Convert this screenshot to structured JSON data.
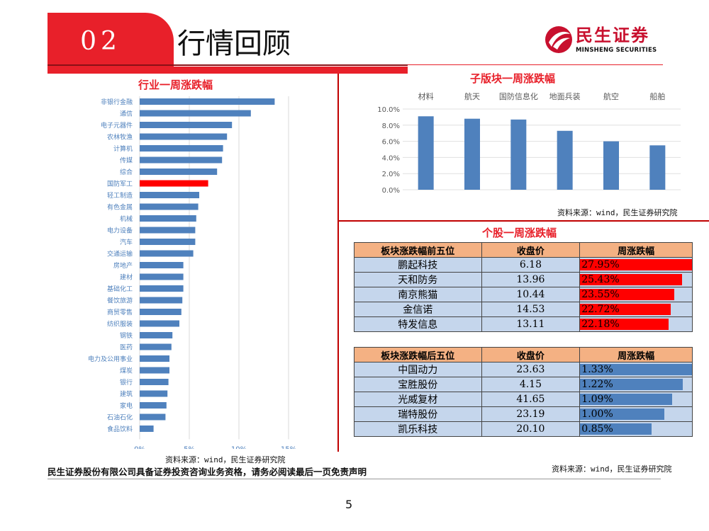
{
  "header": {
    "section_number": "02",
    "title": "行情回顾"
  },
  "logo": {
    "name_cn": "民生证券",
    "name_en": "MINSHENG SECURITIES"
  },
  "industry_chart": {
    "title": "行业一周涨跌幅",
    "source": "资料来源：wind，民生证券研究院"
  },
  "sub_sector_chart": {
    "title": "子版块一周涨跌幅",
    "source": "资料来源：wind，民生证券研究院"
  },
  "stock_section": {
    "title": "个股一周涨跌幅",
    "source": "资料来源：wind，民生证券研究院",
    "top5": {
      "headers": [
        "板块涨跌幅前五位",
        "收盘价",
        "周涨跌幅"
      ],
      "rows": [
        {
          "name": "鹏起科技",
          "close": "6.18",
          "change": "27.95%",
          "value": 27.95
        },
        {
          "name": "天和防务",
          "close": "13.96",
          "change": "25.43%",
          "value": 25.43
        },
        {
          "name": "南京熊猫",
          "close": "10.44",
          "change": "23.55%",
          "value": 23.55
        },
        {
          "name": "金信诺",
          "close": "14.53",
          "change": "22.72%",
          "value": 22.72
        },
        {
          "name": "特发信息",
          "close": "13.11",
          "change": "22.18%",
          "value": 22.18
        }
      ],
      "bar_color": "#ff0000"
    },
    "bottom5": {
      "headers": [
        "板块涨跌幅后五位",
        "收盘价",
        "周涨跌幅"
      ],
      "rows": [
        {
          "name": "中国动力",
          "close": "23.63",
          "change": "1.33%",
          "value": 1.33
        },
        {
          "name": "宝胜股份",
          "close": "4.15",
          "change": "1.22%",
          "value": 1.22
        },
        {
          "name": "光威复材",
          "close": "41.65",
          "change": "1.09%",
          "value": 1.09
        },
        {
          "name": "瑞特股份",
          "close": "23.19",
          "change": "1.00%",
          "value": 1.0
        },
        {
          "name": "凯乐科技",
          "close": "20.10",
          "change": "0.85%",
          "value": 0.85
        }
      ],
      "bar_color": "#4f81bd"
    }
  },
  "footer": {
    "disclaimer": "民生证券股份有限公司具备证券投资咨询业务资格，请务必阅读最后一页免责声明",
    "page_number": "5"
  },
  "colors": {
    "accent_red": "#e8202a",
    "bar_blue": "#4f81bd",
    "highlight_red": "#ff0000",
    "header_orange": "#f4b183",
    "cell_blue": "#c5d6ec"
  },
  "chart_data": [
    {
      "type": "bar",
      "orientation": "horizontal",
      "title": "行业一周涨跌幅",
      "categories": [
        "非银行金融",
        "通信",
        "电子元器件",
        "农林牧渔",
        "计算机",
        "传媒",
        "综合",
        "国防军工",
        "轻工制造",
        "有色金属",
        "机械",
        "电力设备",
        "汽车",
        "交通运输",
        "房地产",
        "建材",
        "基础化工",
        "餐饮旅游",
        "商贸零售",
        "纺织服装",
        "钢铁",
        "医药",
        "电力及公用事业",
        "煤炭",
        "银行",
        "建筑",
        "家电",
        "石油石化",
        "食品饮料"
      ],
      "values": [
        13.6,
        11.2,
        9.3,
        8.8,
        8.4,
        8.3,
        7.8,
        6.9,
        6.0,
        5.9,
        5.7,
        5.6,
        5.6,
        5.4,
        4.4,
        4.4,
        4.4,
        4.3,
        4.2,
        4.0,
        3.3,
        3.2,
        3.0,
        3.0,
        2.9,
        2.8,
        2.7,
        2.6,
        1.4
      ],
      "highlight": "国防军工",
      "xlim": [
        0,
        15
      ],
      "xticks": [
        "0%",
        "5%",
        "10%",
        "15%"
      ],
      "xtick_values": [
        0,
        5,
        10,
        15
      ],
      "grid": true
    },
    {
      "type": "bar",
      "title": "子版块一周涨跌幅",
      "categories": [
        "材料",
        "航天",
        "国防信息化",
        "地面兵装",
        "航空",
        "船舶"
      ],
      "values": [
        9.1,
        8.8,
        8.7,
        7.3,
        6.0,
        5.5
      ],
      "ylim": [
        0,
        10
      ],
      "yticks": [
        "0.0%",
        "2.0%",
        "4.0%",
        "6.0%",
        "8.0%",
        "10.0%"
      ],
      "ytick_values": [
        0,
        2,
        4,
        6,
        8,
        10
      ],
      "category_axis_position": "top",
      "grid": true
    }
  ]
}
